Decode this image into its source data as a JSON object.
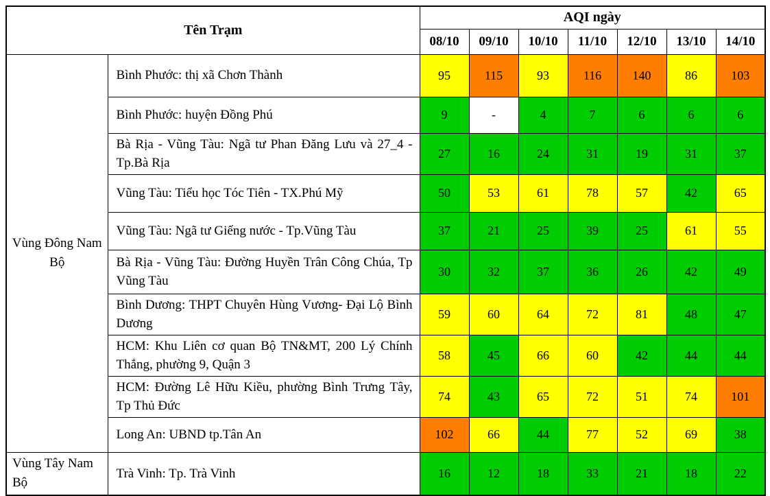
{
  "table": {
    "station_header": "Tên Trạm",
    "aqi_header": "AQI ngày",
    "dates": [
      "08/10",
      "09/10",
      "10/10",
      "11/10",
      "12/10",
      "13/10",
      "14/10"
    ],
    "regions": [
      {
        "name": "Vùng Đông Nam Bộ",
        "rows": [
          {
            "station": "Bình Phước: thị xã Chơn Thành",
            "values": [
              "95",
              "115",
              "93",
              "116",
              "140",
              "86",
              "103"
            ],
            "colors": [
              "yellow",
              "orange",
              "yellow",
              "orange",
              "orange",
              "yellow",
              "orange"
            ]
          },
          {
            "station": "Bình Phước: huyện Đồng Phú",
            "values": [
              "9",
              "-",
              "4",
              "7",
              "6",
              "6",
              "6"
            ],
            "colors": [
              "green",
              "white",
              "green",
              "green",
              "green",
              "green",
              "green"
            ]
          },
          {
            "station": "Bà Rịa - Vũng Tàu: Ngã tư Phan Đăng Lưu và 27_4 - Tp.Bà Rịa",
            "values": [
              "27",
              "16",
              "24",
              "31",
              "19",
              "31",
              "37"
            ],
            "colors": [
              "green",
              "green",
              "green",
              "green",
              "green",
              "green",
              "green"
            ]
          },
          {
            "station": "Vũng Tàu: Tiểu học Tóc Tiên - TX.Phú Mỹ",
            "values": [
              "50",
              "53",
              "61",
              "78",
              "57",
              "42",
              "65"
            ],
            "colors": [
              "green",
              "yellow",
              "yellow",
              "yellow",
              "yellow",
              "green",
              "yellow"
            ]
          },
          {
            "station": "Vũng Tàu: Ngã tư Giếng nước - Tp.Vũng Tàu",
            "values": [
              "37",
              "21",
              "25",
              "39",
              "25",
              "61",
              "55"
            ],
            "colors": [
              "green",
              "green",
              "green",
              "green",
              "green",
              "yellow",
              "yellow"
            ]
          },
          {
            "station": "Bà Rịa - Vũng Tàu: Đường Huyền Trân Công Chúa, Tp Vũng Tàu",
            "values": [
              "30",
              "32",
              "37",
              "36",
              "26",
              "42",
              "49"
            ],
            "colors": [
              "green",
              "green",
              "green",
              "green",
              "green",
              "green",
              "green"
            ]
          },
          {
            "station": "Bình Dương: THPT Chuyên Hùng Vương- Đại Lộ Bình Dương",
            "values": [
              "59",
              "60",
              "64",
              "72",
              "81",
              "48",
              "47"
            ],
            "colors": [
              "yellow",
              "yellow",
              "yellow",
              "yellow",
              "yellow",
              "green",
              "green"
            ]
          },
          {
            "station": "HCM: Khu Liên cơ quan Bộ TN&MT, 200 Lý Chính Thắng, phường 9, Quận 3",
            "values": [
              "58",
              "45",
              "66",
              "60",
              "42",
              "44",
              "44"
            ],
            "colors": [
              "yellow",
              "green",
              "yellow",
              "yellow",
              "green",
              "green",
              "green"
            ]
          },
          {
            "station": "HCM: Đường Lê Hữu Kiều, phường Bình Trưng Tây, Tp Thủ Đức",
            "values": [
              "74",
              "43",
              "65",
              "72",
              "51",
              "74",
              "101"
            ],
            "colors": [
              "yellow",
              "green",
              "yellow",
              "yellow",
              "yellow",
              "yellow",
              "orange"
            ]
          },
          {
            "station": "Long An: UBND tp.Tân An",
            "values": [
              "102",
              "66",
              "44",
              "77",
              "52",
              "69",
              "38"
            ],
            "colors": [
              "orange",
              "yellow",
              "green",
              "yellow",
              "yellow",
              "yellow",
              "green"
            ]
          }
        ]
      },
      {
        "name": "Vùng Tây Nam Bộ",
        "rows": [
          {
            "station": "Trà Vinh: Tp. Trà Vinh",
            "values": [
              "16",
              "12",
              "18",
              "33",
              "21",
              "18",
              "22"
            ],
            "colors": [
              "green",
              "green",
              "green",
              "green",
              "green",
              "green",
              "green"
            ]
          }
        ]
      }
    ]
  },
  "colors": {
    "green": "#00cd00",
    "yellow": "#ffff00",
    "orange": "#ff7e00",
    "white": "#ffffff"
  }
}
